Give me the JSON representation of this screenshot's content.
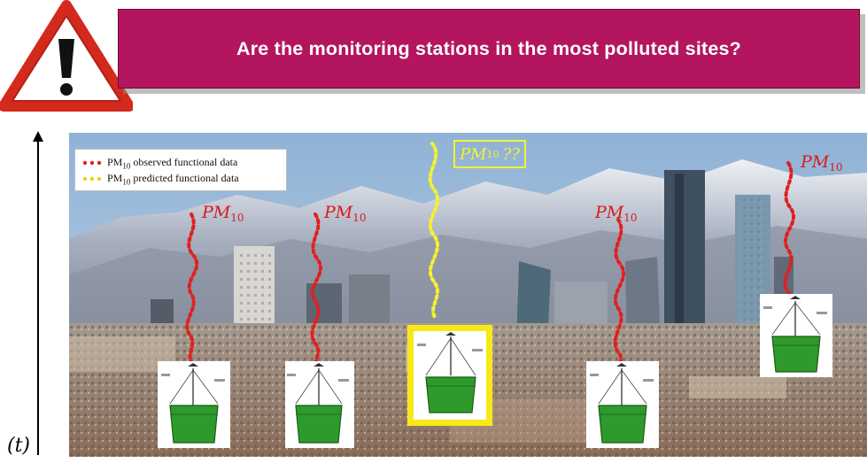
{
  "banner": {
    "title": "Are the monitoring stations in the most polluted sites?"
  },
  "time_axis": {
    "label": "(t)"
  },
  "legend": {
    "observed": {
      "label": "PM",
      "sub": "10",
      "rest": " observed functional data",
      "color": "#e02020"
    },
    "predicted": {
      "label": "PM",
      "sub": "10",
      "rest": " predicted functional data",
      "color": "#f5d20a"
    }
  },
  "pm_labels": [
    {
      "text": "PM",
      "sub": "10"
    },
    {
      "text": "PM",
      "sub": "10"
    },
    {
      "text": "PM",
      "sub": "10"
    },
    {
      "text": "PM",
      "sub": "10"
    }
  ],
  "predicted_label": {
    "text": "PM",
    "sub": "10",
    "suffix": "??"
  },
  "colors": {
    "banner": "#b3155f",
    "observed": "#d91b1b",
    "predicted": "#f5f230",
    "highlight": "#f7e81a",
    "warning_red": "#d42a1e"
  },
  "icons": [
    "warning-triangle-icon",
    "time-axis-arrow-icon",
    "monitoring-station-icon"
  ]
}
